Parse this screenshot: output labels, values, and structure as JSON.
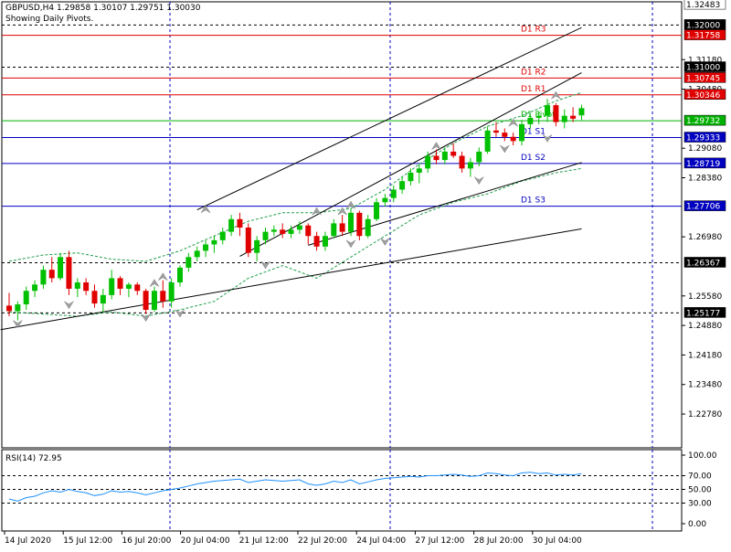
{
  "header": {
    "symbol_line": "GBPUSD,H4  1.29858 1.30107 1.29751 1.30030",
    "status_line": "Showing Daily Pivots."
  },
  "chart_data": {
    "type": "candlestick",
    "symbol": "GBPUSD",
    "timeframe": "H4",
    "ohlc": {
      "open": 1.29858,
      "high": 1.30107,
      "low": 1.29751,
      "close": 1.3003
    },
    "price_axis": {
      "range": [
        1.2198,
        1.3255
      ],
      "tick_labels": [
        "1.31180",
        "1.30480",
        "1.29080",
        "1.28380",
        "1.26980",
        "1.25580",
        "1.24880",
        "1.24180",
        "1.23480",
        "1.22780"
      ],
      "tick_values": [
        1.3118,
        1.3048,
        1.2908,
        1.2838,
        1.2698,
        1.2558,
        1.2488,
        1.2418,
        1.2348,
        1.2278
      ]
    },
    "time_axis": {
      "labels": [
        "14 Jul 2020",
        "15 Jul 12:00",
        "16 Jul 20:00",
        "20 Jul 04:00",
        "21 Jul 12:00",
        "22 Jul 20:00",
        "24 Jul 04:00",
        "27 Jul 12:00",
        "28 Jul 20:00",
        "30 Jul 04:00"
      ]
    },
    "horizontal_levels": [
      {
        "label": "1.32483",
        "value": 1.32483,
        "style": "box"
      },
      {
        "label": "1.32000",
        "value": 1.32,
        "style": "dashed"
      },
      {
        "label": "1.31758",
        "value": 1.31758,
        "style": "red",
        "name": "D1 R3"
      },
      {
        "label": "1.31000",
        "value": 1.31,
        "style": "dashed"
      },
      {
        "label": "1.30745",
        "value": 1.30745,
        "style": "red",
        "name": "D1 R2"
      },
      {
        "label": "1.30346",
        "value": 1.30346,
        "style": "red",
        "name": "D1 R1"
      },
      {
        "label": "1.29732",
        "value": 1.29732,
        "style": "green",
        "name": "D1 Pivot"
      },
      {
        "label": "1.29333",
        "value": 1.29333,
        "style": "blue",
        "name": "D1 S1"
      },
      {
        "label": "1.28719",
        "value": 1.28719,
        "style": "blue",
        "name": "D1 S2"
      },
      {
        "label": "1.27706",
        "value": 1.27706,
        "style": "blue",
        "name": "D1 S3"
      },
      {
        "label": "1.26367",
        "value": 1.26367,
        "style": "dashed"
      },
      {
        "label": "1.25177",
        "value": 1.25177,
        "style": "dashed"
      }
    ],
    "candles": [
      [
        1.2535,
        1.2565,
        1.251,
        1.2522
      ],
      [
        1.2522,
        1.2545,
        1.25,
        1.2538
      ],
      [
        1.2538,
        1.258,
        1.2525,
        1.257
      ],
      [
        1.257,
        1.2595,
        1.2555,
        1.2585
      ],
      [
        1.2585,
        1.263,
        1.2575,
        1.262
      ],
      [
        1.262,
        1.265,
        1.259,
        1.26
      ],
      [
        1.26,
        1.266,
        1.2595,
        1.265
      ],
      [
        1.265,
        1.2665,
        1.256,
        1.2575
      ],
      [
        1.2575,
        1.26,
        1.2555,
        1.259
      ],
      [
        1.259,
        1.26,
        1.256,
        1.257
      ],
      [
        1.257,
        1.2585,
        1.253,
        1.254
      ],
      [
        1.254,
        1.2575,
        1.252,
        1.256
      ],
      [
        1.256,
        1.262,
        1.255,
        1.26
      ],
      [
        1.26,
        1.2605,
        1.256,
        1.2575
      ],
      [
        1.2575,
        1.259,
        1.2555,
        1.2585
      ],
      [
        1.2585,
        1.259,
        1.256,
        1.257
      ],
      [
        1.257,
        1.2575,
        1.2515,
        1.2525
      ],
      [
        1.2525,
        1.258,
        1.252,
        1.257
      ],
      [
        1.257,
        1.2595,
        1.253,
        1.2545
      ],
      [
        1.2545,
        1.26,
        1.253,
        1.259
      ],
      [
        1.259,
        1.263,
        1.258,
        1.2625
      ],
      [
        1.2625,
        1.266,
        1.2615,
        1.265
      ],
      [
        1.265,
        1.2675,
        1.264,
        1.2665
      ],
      [
        1.2665,
        1.269,
        1.265,
        1.268
      ],
      [
        1.268,
        1.27,
        1.266,
        1.269
      ],
      [
        1.269,
        1.272,
        1.268,
        1.271
      ],
      [
        1.271,
        1.275,
        1.27,
        1.274
      ],
      [
        1.274,
        1.2755,
        1.27,
        1.272
      ],
      [
        1.272,
        1.273,
        1.265,
        1.266
      ],
      [
        1.266,
        1.27,
        1.264,
        1.269
      ],
      [
        1.269,
        1.272,
        1.268,
        1.271
      ],
      [
        1.271,
        1.2725,
        1.27,
        1.2715
      ],
      [
        1.2715,
        1.273,
        1.2695,
        1.2705
      ],
      [
        1.2705,
        1.2725,
        1.2695,
        1.2715
      ],
      [
        1.2715,
        1.2735,
        1.2705,
        1.2725
      ],
      [
        1.2725,
        1.273,
        1.268,
        1.27
      ],
      [
        1.27,
        1.271,
        1.2665,
        1.2675
      ],
      [
        1.2675,
        1.271,
        1.2665,
        1.27
      ],
      [
        1.27,
        1.274,
        1.2695,
        1.273
      ],
      [
        1.273,
        1.275,
        1.27,
        1.271
      ],
      [
        1.271,
        1.2765,
        1.27,
        1.2755
      ],
      [
        1.2755,
        1.276,
        1.269,
        1.27
      ],
      [
        1.27,
        1.275,
        1.2695,
        1.274
      ],
      [
        1.274,
        1.279,
        1.2735,
        1.278
      ],
      [
        1.278,
        1.28,
        1.277,
        1.279
      ],
      [
        1.279,
        1.282,
        1.278,
        1.281
      ],
      [
        1.281,
        1.284,
        1.28,
        1.283
      ],
      [
        1.283,
        1.286,
        1.282,
        1.285
      ],
      [
        1.285,
        1.287,
        1.2825,
        1.286
      ],
      [
        1.286,
        1.29,
        1.285,
        1.289
      ],
      [
        1.289,
        1.2905,
        1.287,
        1.288
      ],
      [
        1.288,
        1.291,
        1.287,
        1.29
      ],
      [
        1.29,
        1.292,
        1.2885,
        1.289
      ],
      [
        1.289,
        1.29,
        1.285,
        1.286
      ],
      [
        1.286,
        1.2885,
        1.284,
        1.2875
      ],
      [
        1.2875,
        1.291,
        1.2865,
        1.29
      ],
      [
        1.29,
        1.296,
        1.2895,
        1.295
      ],
      [
        1.295,
        1.297,
        1.2935,
        1.2945
      ],
      [
        1.2945,
        1.2955,
        1.2925,
        1.2935
      ],
      [
        1.2935,
        1.2945,
        1.2915,
        1.2925
      ],
      [
        1.2925,
        1.2975,
        1.2915,
        1.2965
      ],
      [
        1.2965,
        1.299,
        1.2955,
        1.298
      ],
      [
        1.298,
        1.2995,
        1.2965,
        1.2985
      ],
      [
        1.2985,
        1.3025,
        1.297,
        1.301
      ],
      [
        1.301,
        1.3015,
        1.296,
        1.297
      ],
      [
        1.297,
        1.3,
        1.2955,
        1.2985
      ],
      [
        1.2985,
        1.3005,
        1.297,
        1.2978
      ],
      [
        1.2986,
        1.3011,
        1.2975,
        1.3003
      ]
    ],
    "bollinger_upper": [
      [
        0,
        1.264
      ],
      [
        4,
        1.2655
      ],
      [
        8,
        1.266
      ],
      [
        12,
        1.2645
      ],
      [
        16,
        1.264
      ],
      [
        20,
        1.2665
      ],
      [
        24,
        1.27
      ],
      [
        28,
        1.2735
      ],
      [
        32,
        1.2755
      ],
      [
        36,
        1.2755
      ],
      [
        40,
        1.2765
      ],
      [
        44,
        1.281
      ],
      [
        48,
        1.287
      ],
      [
        52,
        1.292
      ],
      [
        56,
        1.296
      ],
      [
        60,
        1.2985
      ],
      [
        64,
        1.302
      ],
      [
        67,
        1.304
      ]
    ],
    "bollinger_lower": [
      [
        0,
        1.252
      ],
      [
        4,
        1.2515
      ],
      [
        8,
        1.251
      ],
      [
        12,
        1.252
      ],
      [
        16,
        1.251
      ],
      [
        20,
        1.2525
      ],
      [
        24,
        1.2545
      ],
      [
        28,
        1.26
      ],
      [
        32,
        1.263
      ],
      [
        36,
        1.26
      ],
      [
        40,
        1.265
      ],
      [
        44,
        1.27
      ],
      [
        48,
        1.275
      ],
      [
        52,
        1.278
      ],
      [
        56,
        1.28
      ],
      [
        60,
        1.283
      ],
      [
        64,
        1.285
      ],
      [
        67,
        1.286
      ]
    ],
    "trendlines": [
      {
        "from": [
          -1,
          1.2478
        ],
        "to": [
          67,
          1.2717
        ]
      },
      {
        "from": [
          35,
          1.2678
        ],
        "to": [
          67,
          1.2874
        ]
      },
      {
        "from": [
          22,
          1.2762
        ],
        "to": [
          67,
          1.3194
        ]
      },
      {
        "from": [
          27,
          1.2652
        ],
        "to": [
          67,
          1.3087
        ]
      }
    ],
    "fractals_up": [
      [
        17,
        1.258
      ],
      [
        18,
        1.2595
      ],
      [
        23,
        1.2755
      ],
      [
        36,
        1.275
      ],
      [
        39,
        1.275
      ],
      [
        40,
        1.2765
      ],
      [
        50,
        1.2905
      ],
      [
        59,
        1.296
      ],
      [
        64,
        1.3025
      ]
    ],
    "fractals_down": [
      [
        1,
        1.25
      ],
      [
        7,
        1.2545
      ],
      [
        16,
        1.2515
      ],
      [
        20,
        1.2525
      ],
      [
        30,
        1.264
      ],
      [
        40,
        1.269
      ],
      [
        44,
        1.2695
      ],
      [
        55,
        1.284
      ],
      [
        58,
        1.2915
      ],
      [
        63,
        1.294
      ]
    ],
    "rsi": {
      "label": "RSI(14) 72.95",
      "value": 72.95,
      "axis_labels": [
        "100.00",
        "70.00",
        "50.00",
        "30.00",
        "0.00"
      ],
      "levels": [
        100,
        70,
        50,
        30,
        0
      ],
      "values": [
        36,
        33,
        38,
        40,
        45,
        48,
        46,
        50,
        47,
        45,
        41,
        43,
        48,
        46,
        47,
        45,
        42,
        45,
        48,
        50,
        52,
        55,
        58,
        60,
        62,
        63,
        64,
        65,
        60,
        62,
        64,
        63,
        62,
        63,
        64,
        58,
        56,
        58,
        62,
        60,
        64,
        58,
        61,
        64,
        66,
        67,
        68,
        69,
        68,
        70,
        70,
        71,
        72,
        71,
        69,
        70,
        74,
        73,
        71,
        70,
        74,
        75,
        73,
        74,
        71,
        72,
        71,
        73
      ]
    }
  }
}
